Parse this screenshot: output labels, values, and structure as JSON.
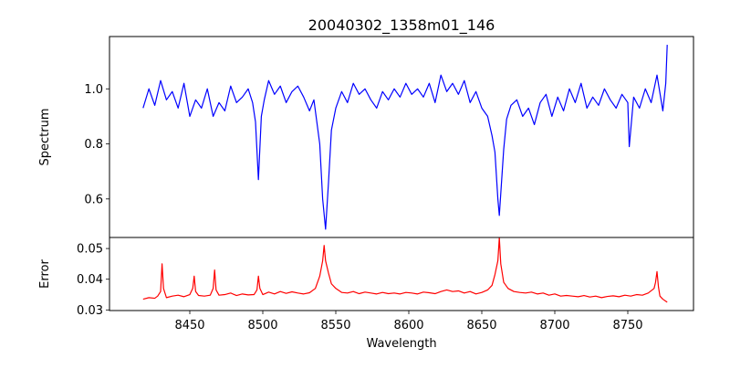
{
  "chart_data": {
    "type": "line",
    "title": "20040302_1358m01_146",
    "xlabel": "Wavelength",
    "xlim": [
      8395,
      8795
    ],
    "xticks": [
      8450,
      8500,
      8550,
      8600,
      8650,
      8700,
      8750
    ],
    "panels": [
      {
        "ylabel": "Spectrum",
        "ylim": [
          0.46,
          1.19
        ],
        "yticks": [
          0.6,
          0.8,
          1.0
        ],
        "ytick_labels": [
          "0.6",
          "0.8",
          "1.0"
        ],
        "series": [
          {
            "color": "#0000ff",
            "x": [
              8418,
              8422,
              8426,
              8430,
              8434,
              8438,
              8442,
              8446,
              8450,
              8454,
              8458,
              8462,
              8466,
              8470,
              8474,
              8478,
              8482,
              8486,
              8490,
              8493,
              8495,
              8497,
              8499,
              8501,
              8504,
              8508,
              8512,
              8516,
              8520,
              8524,
              8528,
              8532,
              8535,
              8537,
              8539,
              8541,
              8543,
              8545,
              8547,
              8550,
              8554,
              8558,
              8562,
              8566,
              8570,
              8574,
              8578,
              8582,
              8586,
              8590,
              8594,
              8598,
              8602,
              8606,
              8610,
              8614,
              8618,
              8622,
              8626,
              8630,
              8634,
              8638,
              8642,
              8646,
              8650,
              8654,
              8657,
              8659,
              8661,
              8662,
              8663,
              8665,
              8667,
              8670,
              8674,
              8678,
              8682,
              8686,
              8690,
              8694,
              8698,
              8702,
              8706,
              8710,
              8714,
              8718,
              8722,
              8726,
              8730,
              8734,
              8738,
              8742,
              8746,
              8750,
              8751,
              8754,
              8758,
              8762,
              8766,
              8770,
              8774,
              8776,
              8777
            ],
            "y": [
              0.93,
              1.0,
              0.94,
              1.03,
              0.96,
              0.99,
              0.93,
              1.02,
              0.9,
              0.96,
              0.93,
              1.0,
              0.9,
              0.95,
              0.92,
              1.01,
              0.95,
              0.97,
              1.0,
              0.95,
              0.88,
              0.67,
              0.9,
              0.96,
              1.03,
              0.98,
              1.01,
              0.95,
              0.99,
              1.01,
              0.97,
              0.92,
              0.96,
              0.88,
              0.8,
              0.6,
              0.49,
              0.66,
              0.85,
              0.93,
              0.99,
              0.95,
              1.02,
              0.98,
              1.0,
              0.96,
              0.93,
              0.99,
              0.96,
              1.0,
              0.97,
              1.02,
              0.98,
              1.0,
              0.97,
              1.02,
              0.95,
              1.05,
              0.99,
              1.02,
              0.98,
              1.03,
              0.95,
              0.99,
              0.93,
              0.9,
              0.83,
              0.77,
              0.6,
              0.54,
              0.62,
              0.78,
              0.89,
              0.94,
              0.96,
              0.9,
              0.93,
              0.87,
              0.95,
              0.98,
              0.9,
              0.97,
              0.92,
              1.0,
              0.95,
              1.02,
              0.93,
              0.97,
              0.94,
              1.0,
              0.96,
              0.93,
              0.98,
              0.95,
              0.79,
              0.97,
              0.93,
              1.0,
              0.95,
              1.05,
              0.92,
              1.02,
              1.16
            ]
          }
        ]
      },
      {
        "ylabel": "Error",
        "ylim": [
          0.0298,
          0.0536
        ],
        "yticks": [
          0.03,
          0.04,
          0.05
        ],
        "ytick_labels": [
          "0.03",
          "0.04",
          "0.05"
        ],
        "series": [
          {
            "color": "#ff0000",
            "x": [
              8418,
              8422,
              8426,
              8428,
              8430,
              8431,
              8432,
              8434,
              8438,
              8442,
              8446,
              8450,
              8452,
              8453,
              8454,
              8456,
              8460,
              8464,
              8466,
              8467,
              8468,
              8470,
              8474,
              8478,
              8482,
              8486,
              8490,
              8494,
              8496,
              8497,
              8498,
              8500,
              8504,
              8508,
              8512,
              8516,
              8520,
              8524,
              8528,
              8532,
              8536,
              8539,
              8541,
              8542,
              8543,
              8545,
              8547,
              8550,
              8554,
              8558,
              8562,
              8566,
              8570,
              8574,
              8578,
              8582,
              8586,
              8590,
              8594,
              8598,
              8602,
              8606,
              8610,
              8614,
              8618,
              8622,
              8626,
              8630,
              8634,
              8638,
              8642,
              8646,
              8650,
              8654,
              8657,
              8659,
              8661,
              8662,
              8663,
              8665,
              8668,
              8672,
              8676,
              8680,
              8684,
              8688,
              8692,
              8696,
              8700,
              8704,
              8708,
              8712,
              8716,
              8720,
              8724,
              8728,
              8732,
              8736,
              8740,
              8744,
              8748,
              8752,
              8756,
              8760,
              8764,
              8768,
              8769,
              8770,
              8771,
              8772,
              8774,
              8777
            ],
            "y": [
              0.0335,
              0.034,
              0.0338,
              0.0345,
              0.036,
              0.045,
              0.037,
              0.034,
              0.0345,
              0.0348,
              0.0343,
              0.035,
              0.037,
              0.041,
              0.036,
              0.0347,
              0.0345,
              0.0348,
              0.037,
              0.043,
              0.0365,
              0.0348,
              0.035,
              0.0355,
              0.0347,
              0.0352,
              0.0349,
              0.035,
              0.0365,
              0.041,
              0.037,
              0.035,
              0.0358,
              0.0352,
              0.036,
              0.0354,
              0.0359,
              0.0355,
              0.0352,
              0.0356,
              0.037,
              0.041,
              0.046,
              0.051,
              0.046,
              0.042,
              0.0385,
              0.037,
              0.0357,
              0.0355,
              0.036,
              0.0353,
              0.0358,
              0.0355,
              0.0352,
              0.0357,
              0.0353,
              0.0355,
              0.0352,
              0.0357,
              0.0355,
              0.0352,
              0.0358,
              0.0356,
              0.0353,
              0.036,
              0.0365,
              0.036,
              0.0362,
              0.0355,
              0.036,
              0.0352,
              0.0357,
              0.0365,
              0.038,
              0.0415,
              0.046,
              0.0535,
              0.045,
              0.039,
              0.037,
              0.036,
              0.0357,
              0.0355,
              0.0358,
              0.0352,
              0.0355,
              0.0348,
              0.0352,
              0.0345,
              0.0347,
              0.0345,
              0.0343,
              0.0347,
              0.0342,
              0.0345,
              0.034,
              0.0344,
              0.0346,
              0.0343,
              0.0348,
              0.0345,
              0.035,
              0.0348,
              0.0355,
              0.037,
              0.039,
              0.0425,
              0.0375,
              0.0345,
              0.0335,
              0.0325
            ]
          }
        ]
      }
    ]
  }
}
